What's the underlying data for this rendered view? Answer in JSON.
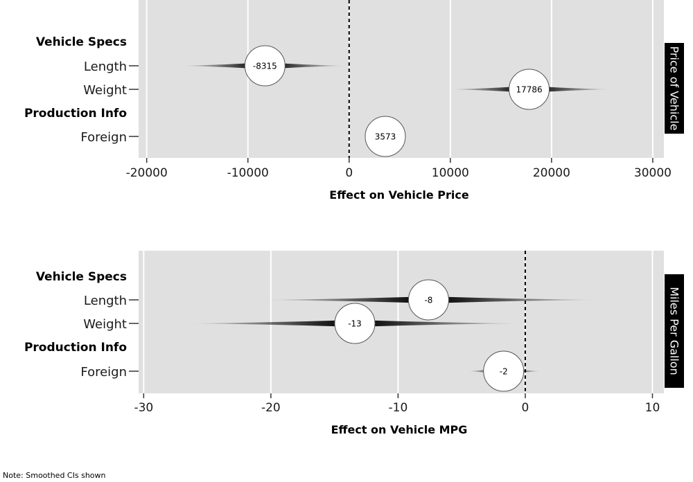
{
  "note": "Note: Smoothed CIs shown",
  "colors": {
    "panel_bg": "#e0e0e0",
    "grid": "#ffffff",
    "strip_bg": "#000000",
    "point_fill": "#ffffff"
  },
  "chart_data": [
    {
      "type": "coefficient-plot",
      "strip_label": "Price of Vehicle",
      "xlabel": "Effect on Vehicle Price",
      "xlim": [
        -20800,
        31100
      ],
      "xticks": [
        -20000,
        -10000,
        0,
        10000,
        20000,
        30000
      ],
      "xtick_labels": [
        "-20000",
        "-10000",
        "0",
        "10000",
        "20000",
        "30000"
      ],
      "reference_line": 0,
      "rows": [
        {
          "label": "Vehicle Specs",
          "kind": "group"
        },
        {
          "label": "Length",
          "kind": "term",
          "estimate": -8315,
          "label_text": "-8315",
          "ci": [
            -16500,
            -400
          ]
        },
        {
          "label": "Weight",
          "kind": "term",
          "estimate": 17786,
          "label_text": "17786",
          "ci": [
            10000,
            25800
          ]
        },
        {
          "label": "Production Info",
          "kind": "group"
        },
        {
          "label": "Foreign",
          "kind": "term",
          "estimate": 3573,
          "label_text": "3573",
          "ci": [
            3573,
            3573
          ]
        }
      ]
    },
    {
      "type": "coefficient-plot",
      "strip_label": "Miles Per Gallon",
      "xlabel": "Effect on Vehicle MPG",
      "xlim": [
        -30.4,
        10.9
      ],
      "xticks": [
        -30,
        -20,
        -10,
        0,
        10
      ],
      "xtick_labels": [
        "-30",
        "-20",
        "-10",
        "0",
        "10"
      ],
      "reference_line": 0,
      "rows": [
        {
          "label": "Vehicle Specs",
          "kind": "group"
        },
        {
          "label": "Length",
          "kind": "term",
          "estimate": -7.6,
          "label_text": "-8",
          "ci": [
            -20.5,
            5.8
          ]
        },
        {
          "label": "Weight",
          "kind": "term",
          "estimate": -13.4,
          "label_text": "-13",
          "ci": [
            -26.5,
            -0.3
          ]
        },
        {
          "label": "Production Info",
          "kind": "group"
        },
        {
          "label": "Foreign",
          "kind": "term",
          "estimate": -1.7,
          "label_text": "-2",
          "ci": [
            -4.5,
            1.2
          ]
        }
      ]
    }
  ]
}
